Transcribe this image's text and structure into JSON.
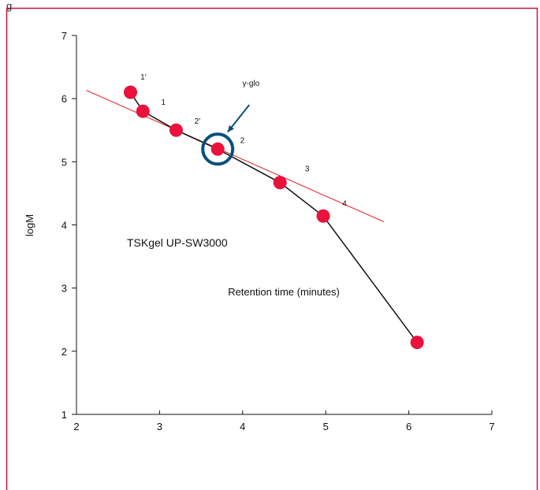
{
  "header": {
    "caption_fragment": "g"
  },
  "colors": {
    "frame": "#d0103a",
    "marker": "#e8123c",
    "ring": "#0a4f7a",
    "fit_line": "#e0202a",
    "curve": "#111111"
  },
  "chart_data": {
    "type": "scatter",
    "title": "",
    "xlabel": "Retention time (minutes)",
    "ylabel": "logM",
    "xlim": [
      2,
      7
    ],
    "ylim": [
      1,
      7
    ],
    "xticks": [
      "2",
      "3",
      "4",
      "5",
      "6",
      "7"
    ],
    "yticks": [
      "1",
      "2",
      "3",
      "4",
      "5",
      "6",
      "7"
    ],
    "grid": false,
    "annotation": "TSKgel UP-SW3000",
    "series": [
      {
        "points": [
          {
            "x": 2.65,
            "y": 6.1
          },
          {
            "x": 2.8,
            "y": 5.8
          },
          {
            "x": 3.2,
            "y": 5.5
          },
          {
            "x": 3.7,
            "y": 5.2
          },
          {
            "x": 4.45,
            "y": 4.67
          },
          {
            "x": 4.97,
            "y": 4.14
          },
          {
            "x": 6.1,
            "y": 2.14
          }
        ]
      }
    ],
    "fit_line": {
      "start": {
        "x": 2.12,
        "y": 6.13
      },
      "end": {
        "x": 5.7,
        "y": 4.05
      }
    },
    "point_labels": [
      {
        "text": "1′",
        "x": 2.77,
        "y": 6.3
      },
      {
        "text": "1",
        "x": 3.02,
        "y": 5.9
      },
      {
        "text": "2′",
        "x": 3.42,
        "y": 5.6
      },
      {
        "text": "2",
        "x": 3.97,
        "y": 5.3
      },
      {
        "text": "3",
        "x": 4.75,
        "y": 4.85
      },
      {
        "text": "4",
        "x": 5.2,
        "y": 4.3
      }
    ],
    "highlight": {
      "label": "γ-glo",
      "point": {
        "x": 3.7,
        "y": 5.2
      },
      "label_pos": {
        "x": 4.1,
        "y": 6.2
      },
      "arrow_from": {
        "x": 4.08,
        "y": 5.9
      },
      "arrow_to": {
        "x": 3.82,
        "y": 5.47
      }
    }
  }
}
